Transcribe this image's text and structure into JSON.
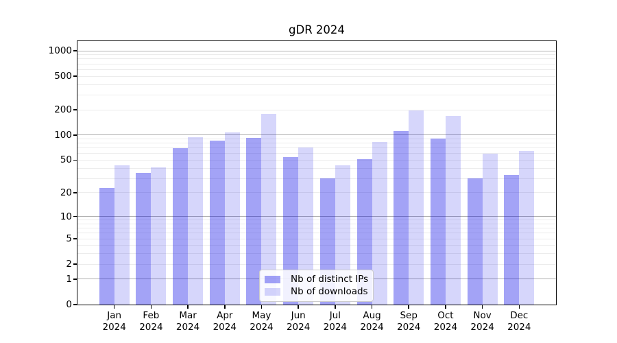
{
  "title": "gDR 2024",
  "chart_data": {
    "type": "bar",
    "title": "gDR 2024",
    "yscale": "log1p",
    "grid": "horizontal; major lines at 1, 10, 100, 1000; minor lines at intermediate values",
    "legend_position": "lower center",
    "categories": [
      "Jan 2024",
      "Feb 2024",
      "Mar 2024",
      "Apr 2024",
      "May 2024",
      "Jun 2024",
      "Jul 2024",
      "Aug 2024",
      "Sep 2024",
      "Oct 2024",
      "Nov 2024",
      "Dec 2024"
    ],
    "series": [
      {
        "name": "Nb of distinct IPs",
        "color": "rgba(0,0,230,0.36)",
        "values": [
          23,
          35,
          70,
          85,
          93,
          54,
          30,
          51,
          112,
          91,
          30,
          33
        ]
      },
      {
        "name": "Nb of downloads",
        "color": "rgba(0,0,230,0.16)",
        "values": [
          43,
          41,
          94,
          107,
          180,
          71,
          43,
          83,
          198,
          168,
          60,
          64
        ]
      }
    ],
    "y_ticks": [
      0,
      1,
      2,
      5,
      10,
      20,
      50,
      100,
      200,
      500,
      1000
    ],
    "ylim": [
      0,
      1300
    ],
    "xlabel": "",
    "ylabel": ""
  },
  "colors": {
    "bar_distinct_ips": "rgba(0,0,230,0.36)",
    "bar_downloads": "rgba(0,0,230,0.16)",
    "grid_major": "#b0b0b0",
    "grid_minor": "#ececec",
    "spine": "#000000",
    "legend_border": "#cccccc"
  }
}
